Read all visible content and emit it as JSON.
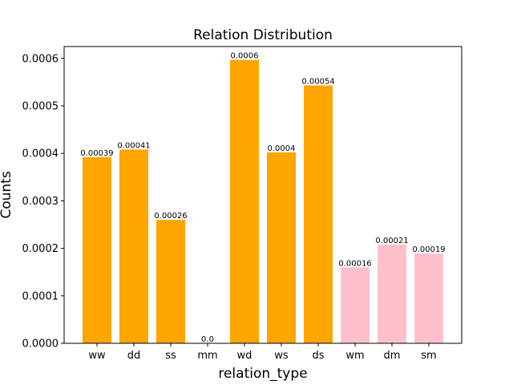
{
  "chart_data": {
    "type": "bar",
    "title": "Relation Distribution",
    "xlabel": "relation_type",
    "ylabel": "Counts",
    "ylim": [
      0,
      0.000625
    ],
    "yticks": [
      "0.0000",
      "0.0001",
      "0.0002",
      "0.0003",
      "0.0004",
      "0.0005",
      "0.0006"
    ],
    "categories": [
      "ww",
      "dd",
      "ss",
      "mm",
      "wd",
      "ws",
      "ds",
      "wm",
      "dm",
      "sm"
    ],
    "values": [
      0.000392,
      0.000408,
      0.00026,
      0.0,
      0.000597,
      0.000402,
      0.000543,
      0.00016,
      0.000208,
      0.000189
    ],
    "data_labels": [
      "0.00039",
      "0.00041",
      "0.00026",
      "0.0",
      "0.0006",
      "0.0004",
      "0.00054",
      "0.00016",
      "0.00021",
      "0.00019"
    ],
    "bar_colors": [
      "#ffa500",
      "#ffa500",
      "#ffa500",
      "#ffa500",
      "#ffa500",
      "#ffa500",
      "#ffa500",
      "#ffc0cb",
      "#ffc0cb",
      "#ffc0cb"
    ],
    "grid": false,
    "legend": "none"
  }
}
